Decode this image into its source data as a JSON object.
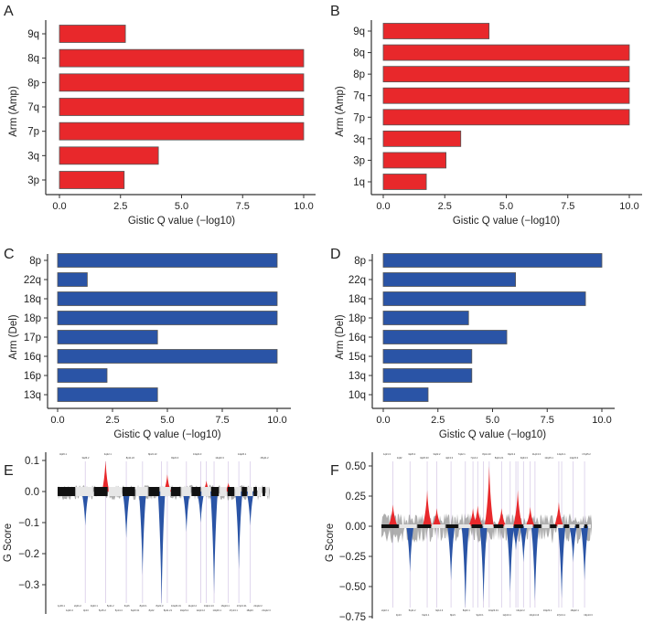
{
  "chart_data": [
    {
      "panel": "A",
      "type": "bar",
      "orientation": "horizontal",
      "categories": [
        "9q",
        "8q",
        "8p",
        "7q",
        "7p",
        "3q",
        "3p"
      ],
      "values": [
        2.7,
        10,
        10,
        10,
        10,
        4.05,
        2.65
      ],
      "xlabel": "Gistic Q value (−log10)",
      "ylabel": "Arm (Amp)",
      "xlim": [
        0,
        10
      ],
      "xticks": [
        "0.0",
        "2.5",
        "5.0",
        "7.5",
        "10.0"
      ],
      "xtick_values": [
        0,
        2.5,
        5,
        7.5,
        10
      ],
      "color": "#e8282b"
    },
    {
      "panel": "B",
      "type": "bar",
      "orientation": "horizontal",
      "categories": [
        "9q",
        "8q",
        "8p",
        "7q",
        "7p",
        "3q",
        "3p",
        "1q"
      ],
      "values": [
        4.3,
        10,
        10,
        10,
        10,
        3.15,
        2.55,
        1.75
      ],
      "xlabel": "Gistic Q value (−log10)",
      "ylabel": "Arm (Amp)",
      "xlim": [
        0,
        10
      ],
      "xticks": [
        "0.0",
        "2.5",
        "5.0",
        "7.5",
        "10.0"
      ],
      "xtick_values": [
        0,
        2.5,
        5,
        7.5,
        10
      ],
      "color": "#e8282b"
    },
    {
      "panel": "C",
      "type": "bar",
      "orientation": "horizontal",
      "categories": [
        "8p",
        "22q",
        "18q",
        "18p",
        "17p",
        "16q",
        "16p",
        "13q"
      ],
      "values": [
        10,
        1.35,
        10,
        10,
        4.55,
        10,
        2.25,
        4.55
      ],
      "xlabel": "Gistic Q value (−log10)",
      "ylabel": "Arm (Del)",
      "xlim": [
        0,
        10
      ],
      "xticks": [
        "0.0",
        "2.5",
        "5.0",
        "7.5",
        "10.0"
      ],
      "xtick_values": [
        0,
        2.5,
        5,
        7.5,
        10
      ],
      "color": "#2a54a6"
    },
    {
      "panel": "D",
      "type": "bar",
      "orientation": "horizontal",
      "categories": [
        "8p",
        "22q",
        "18q",
        "18p",
        "16q",
        "15q",
        "13q",
        "10q"
      ],
      "values": [
        10,
        6.05,
        9.25,
        3.9,
        5.65,
        4.05,
        4.05,
        2.05
      ],
      "xlabel": "Gistic Q value (−log10)",
      "ylabel": "Arm (Del)",
      "xlim": [
        0,
        10
      ],
      "xticks": [
        "0.0",
        "2.5",
        "5.0",
        "7.5",
        "10.0"
      ],
      "xtick_values": [
        0,
        2.5,
        5,
        7.5,
        10
      ],
      "color": "#2a54a6"
    },
    {
      "panel": "E",
      "type": "area",
      "ylabel": "G Score",
      "ylim": [
        -0.37,
        0.12
      ],
      "yticks": [
        "0.1",
        "0.0",
        "−0.1",
        "−0.2",
        "−0.3"
      ],
      "ytick_values": [
        0.1,
        0,
        -0.1,
        -0.2,
        -0.3
      ],
      "x_units": "genome position (Mb)",
      "amp_peaks": [
        {
          "x": 650,
          "y": 0.1
        },
        {
          "x": 1487,
          "y": 0.055
        },
        {
          "x": 2017,
          "y": 0.035
        },
        {
          "x": 2315,
          "y": 0.028
        }
      ],
      "del_peaks": [
        {
          "x": 375,
          "y": -0.11
        },
        {
          "x": 931,
          "y": -0.15
        },
        {
          "x": 1151,
          "y": -0.27
        },
        {
          "x": 1409,
          "y": -0.37
        },
        {
          "x": 1746,
          "y": -0.13
        },
        {
          "x": 1940,
          "y": -0.1
        },
        {
          "x": 2121,
          "y": -0.33
        },
        {
          "x": 2457,
          "y": -0.25
        },
        {
          "x": 2612,
          "y": -0.11
        }
      ],
      "top_labels": [
        "3q26.1",
        "3q26.2",
        "4q22.1",
        "8p11.22",
        "8p24.13",
        "8q22.3",
        "13q22.3",
        "14q23.3",
        "14q26.1",
        "15q11.2"
      ],
      "bottom_labels": [
        "1p36.1",
        "1q32.2",
        "2q31.2",
        "3p13",
        "3q23.1",
        "5p15.2",
        "5p11.2",
        "5p14.4",
        "6q16",
        "6q23.31",
        "8p23.1",
        "8p22",
        "8p21.3",
        "8p11.21",
        "10q23.31",
        "10q23.2",
        "11q22.2",
        "12q13.2",
        "13q14.13",
        "13q33.1",
        "16q24.1",
        "17p13.1",
        "17q21.31",
        "18q23",
        "21q22.2",
        "21q22.3"
      ],
      "colors": {
        "amp": "#e8282b",
        "del": "#2a54a6",
        "noise": "#9a9a9a"
      }
    },
    {
      "panel": "F",
      "type": "area",
      "ylabel": "G Score",
      "ylim": [
        -0.75,
        0.62
      ],
      "yticks": [
        "0.50",
        "0.25",
        "0.00",
        "−0.25",
        "−0.50",
        "−0.75"
      ],
      "ytick_values": [
        0.5,
        0.25,
        0,
        -0.25,
        -0.5,
        -0.75
      ],
      "x_units": "genome position (Mb)",
      "amp_peaks": [
        {
          "x": 157,
          "y": 0.18
        },
        {
          "x": 626,
          "y": 0.3
        },
        {
          "x": 757,
          "y": 0.15
        },
        {
          "x": 1252,
          "y": 0.15
        },
        {
          "x": 1317,
          "y": 0.17
        },
        {
          "x": 1474,
          "y": 0.5
        },
        {
          "x": 1643,
          "y": 0.15
        },
        {
          "x": 1865,
          "y": 0.3
        },
        {
          "x": 2035,
          "y": 0.16
        },
        {
          "x": 2426,
          "y": 0.2
        }
      ],
      "del_peaks": [
        {
          "x": 391,
          "y": -0.38
        },
        {
          "x": 952,
          "y": -0.45
        },
        {
          "x": 1148,
          "y": -0.68
        },
        {
          "x": 1396,
          "y": -0.63
        },
        {
          "x": 1761,
          "y": -0.55
        },
        {
          "x": 1839,
          "y": -0.2
        },
        {
          "x": 1943,
          "y": -0.3
        },
        {
          "x": 2100,
          "y": -0.62
        },
        {
          "x": 2465,
          "y": -0.6
        },
        {
          "x": 2622,
          "y": -0.3
        },
        {
          "x": 2778,
          "y": -0.45
        }
      ],
      "top_labels": [
        "1q21.3",
        "1q32",
        "3q26.2",
        "3q26.33",
        "3q22.2",
        "4q13.3",
        "7q22.1",
        "7p14.2",
        "8p11.23",
        "8q24.21",
        "8q22.2",
        "9q34.3",
        "11q13.3",
        "12q15.1",
        "14q21.1",
        "14q23.3",
        "17q25.2"
      ],
      "bottom_labels": [
        "2q22.1",
        "3p13",
        "5q11.2",
        "6q21.1",
        "6q14.3",
        "8p21",
        "8q23.1",
        "9p23.1",
        "10q23.31",
        "12p13.1",
        "13q12.2",
        "13q14.13",
        "16q23.1",
        "17p13.1",
        "18q22.1",
        "19p13.3"
      ],
      "colors": {
        "amp": "#e8282b",
        "del": "#2a54a6",
        "noise": "#9a9a9a"
      }
    }
  ]
}
